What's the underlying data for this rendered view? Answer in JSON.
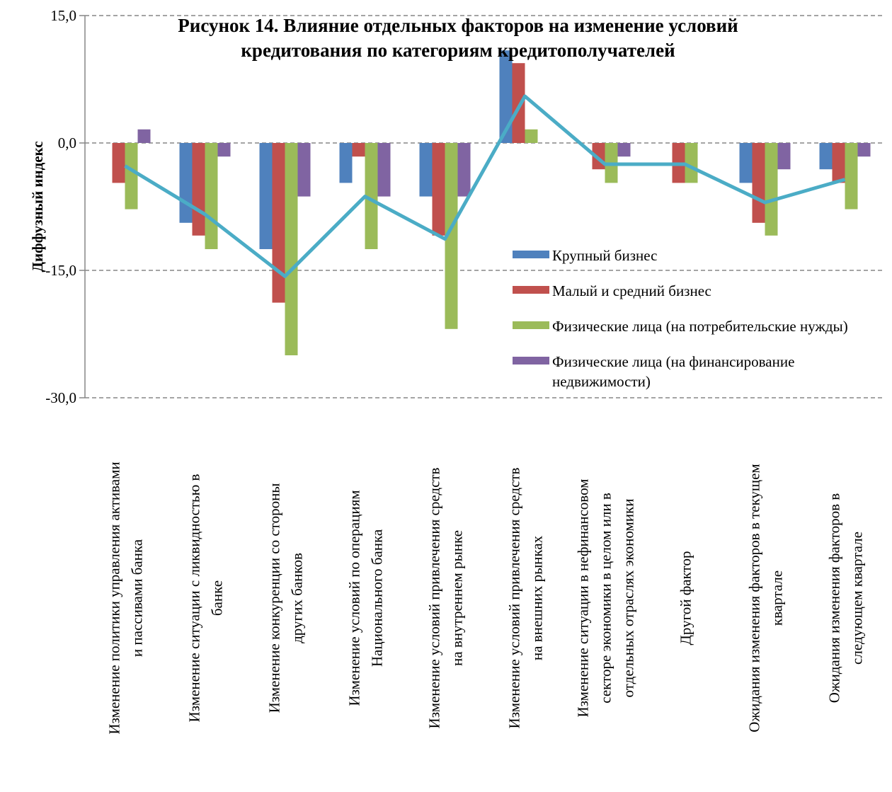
{
  "chart_data": {
    "type": "bar",
    "title_lines": [
      "Рисунок 14. Влияние отдельных факторов на изменение условий",
      "кредитования по категориям кредитополучателей"
    ],
    "ylabel": "Диффузный индекс",
    "xlabel": "",
    "ylim": [
      -30,
      15
    ],
    "yticks": [
      15,
      0,
      -15,
      -30
    ],
    "ytick_labels": [
      "15,0",
      "0,0",
      "-15,0",
      "-30,0"
    ],
    "grid": true,
    "legend_position": "right",
    "categories": [
      [
        "Изменение политики управления активами",
        "и пассивами банка"
      ],
      [
        "Изменение ситуации с ликвидностью в",
        "банке"
      ],
      [
        "Изменение конкуренции со стороны",
        "других банков"
      ],
      [
        "Изменение условий по операциям",
        "Национального банка"
      ],
      [
        "Изменение условий привлечения средств",
        "на внутреннем рынке"
      ],
      [
        "Изменение условий привлечения средств",
        "на внешних рынках"
      ],
      [
        "Изменение ситуации в нефинансовом",
        "секторе экономики в целом или в",
        "отдельных отраслях экономики"
      ],
      [
        "Другой фактор"
      ],
      [
        "Ожидания изменения факторов в текущем",
        "квартале"
      ],
      [
        "Ожидания изменения факторов в",
        "следующем квартале"
      ]
    ],
    "series": [
      {
        "name": "Крупный бизнес",
        "color": "#4F81BD",
        "values": [
          0,
          -9.4,
          -12.5,
          -4.7,
          -6.3,
          10.9,
          0,
          0,
          -4.7,
          -3.1
        ]
      },
      {
        "name": "Малый и средний бизнес",
        "color": "#C0504D",
        "values": [
          -4.7,
          -10.9,
          -18.8,
          -1.6,
          -10.9,
          9.4,
          -3.1,
          -4.7,
          -9.4,
          -4.7
        ]
      },
      {
        "name": "Физические лица (на потребительские нужды)",
        "color": "#9BBB59",
        "values": [
          -7.8,
          -12.5,
          -25.0,
          -12.5,
          -21.9,
          1.6,
          -4.7,
          -4.7,
          -10.9,
          -7.8
        ]
      },
      {
        "name": "Физические лица (на финансирование недвижимости)",
        "color": "#8064A2",
        "values": [
          1.6,
          -1.6,
          -6.3,
          -6.3,
          -6.3,
          0,
          -1.6,
          0,
          -3.1,
          -1.6
        ]
      }
    ],
    "line_series": {
      "color": "#4BACC6",
      "values": [
        -2.7,
        -8.4,
        -15.7,
        -6.3,
        -11.3,
        5.5,
        -2.5,
        -2.5,
        -7.0,
        -4.3
      ]
    },
    "legend": [
      {
        "lines": [
          "Крупный бизнес"
        ],
        "color": "#4F81BD"
      },
      {
        "lines": [
          "Малый и средний бизнес"
        ],
        "color": "#C0504D"
      },
      {
        "lines": [
          "Физические лица (на потребительские нужды)"
        ],
        "color": "#9BBB59"
      },
      {
        "lines": [
          "Физические лица (на финансирование",
          "недвижимости)"
        ],
        "color": "#8064A2"
      }
    ]
  }
}
